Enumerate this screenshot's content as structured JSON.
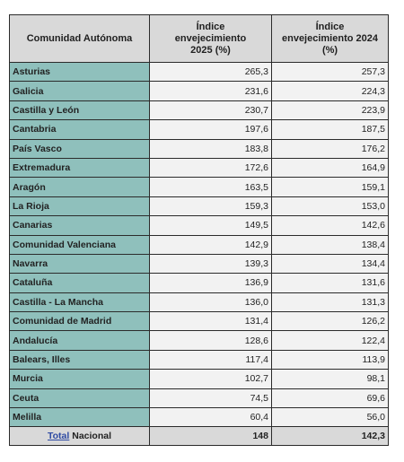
{
  "table": {
    "headers": {
      "col1": "Comunidad Autónoma",
      "col2_lines": [
        "Índice",
        "envejecimiento",
        "2025 (%)"
      ],
      "col3_lines": [
        "Índice",
        "envejecimiento 2024",
        "(%)"
      ]
    },
    "rows": [
      {
        "name": "Asturias",
        "v2025": "265,3",
        "v2024": "257,3"
      },
      {
        "name": "Galicia",
        "v2025": "231,6",
        "v2024": "224,3"
      },
      {
        "name": "Castilla y León",
        "v2025": "230,7",
        "v2024": "223,9"
      },
      {
        "name": "Cantabria",
        "v2025": "197,6",
        "v2024": "187,5"
      },
      {
        "name": "País Vasco",
        "v2025": "183,8",
        "v2024": "176,2"
      },
      {
        "name": "Extremadura",
        "v2025": "172,6",
        "v2024": "164,9"
      },
      {
        "name": "Aragón",
        "v2025": "163,5",
        "v2024": "159,1"
      },
      {
        "name": "La Rioja",
        "v2025": "159,3",
        "v2024": "153,0"
      },
      {
        "name": "Canarias",
        "v2025": "149,5",
        "v2024": "142,6"
      },
      {
        "name": "Comunidad Valenciana",
        "v2025": "142,9",
        "v2024": "138,4"
      },
      {
        "name": "Navarra",
        "v2025": "139,3",
        "v2024": "134,4"
      },
      {
        "name": "Cataluña",
        "v2025": "136,9",
        "v2024": "131,6"
      },
      {
        "name": "Castilla - La Mancha",
        "v2025": "136,0",
        "v2024": "131,3"
      },
      {
        "name": "Comunidad de Madrid",
        "v2025": "131,4",
        "v2024": "126,2"
      },
      {
        "name": "Andalucía",
        "v2025": "128,6",
        "v2024": "122,4"
      },
      {
        "name": "Balears, Illes",
        "v2025": "117,4",
        "v2024": "113,9"
      },
      {
        "name": "Murcia",
        "v2025": "102,7",
        "v2024": "98,1"
      },
      {
        "name": "Ceuta",
        "v2025": "74,5",
        "v2024": "69,6"
      },
      {
        "name": "Melilla",
        "v2025": "60,4",
        "v2024": "56,0"
      }
    ],
    "total": {
      "label_word": "Total",
      "label_rest": " Nacional",
      "v2025": "148",
      "v2024": "142,3"
    }
  }
}
